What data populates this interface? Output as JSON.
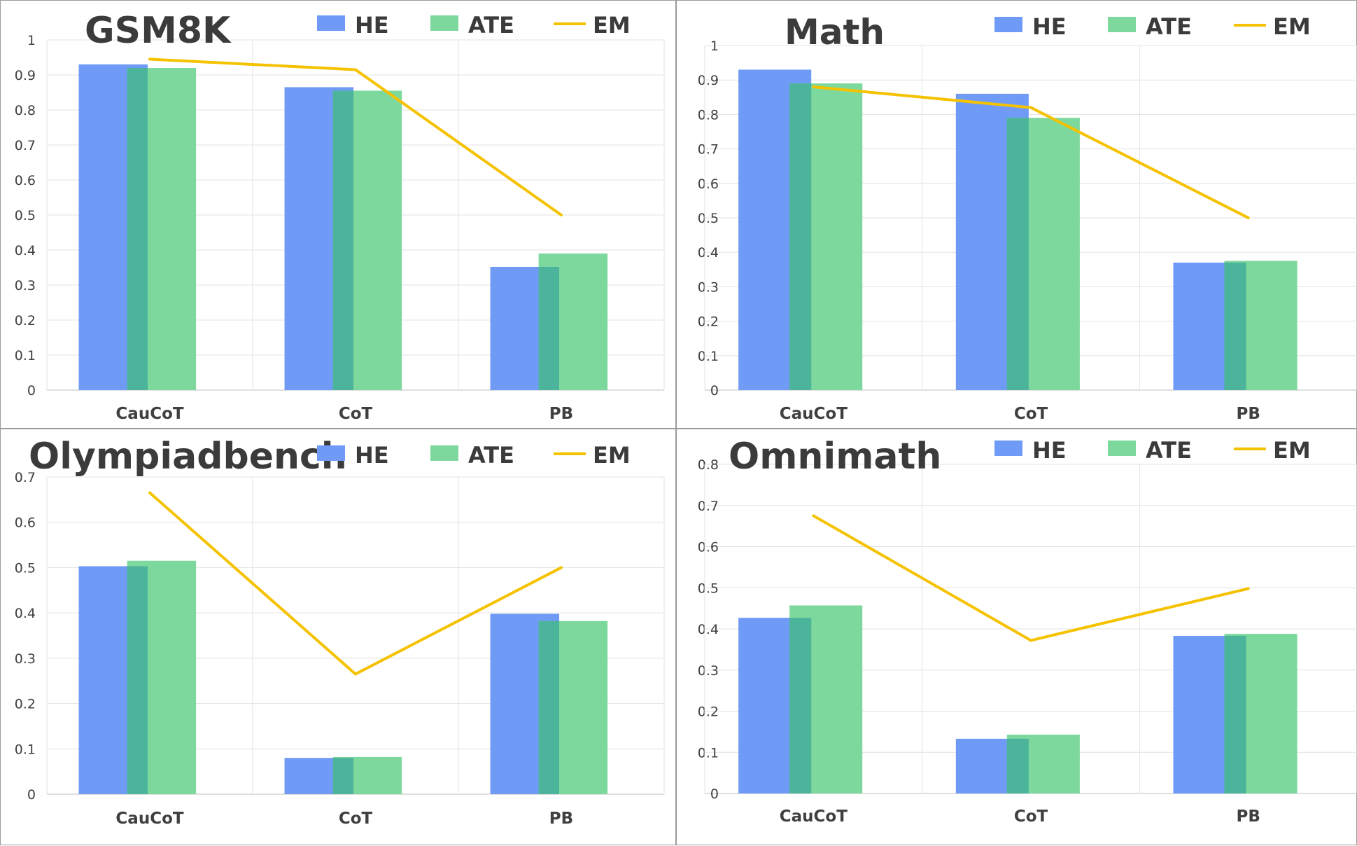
{
  "colors": {
    "HE": "#6f9bf7",
    "ATE": "#7dd89d",
    "overlap": "#4bb49b",
    "EM": "#f5c200"
  },
  "legend": [
    {
      "key": "HE",
      "label": "HE",
      "kind": "box"
    },
    {
      "key": "ATE",
      "label": "ATE",
      "kind": "box"
    },
    {
      "key": "EM",
      "label": "EM",
      "kind": "line"
    }
  ],
  "chart_data": [
    {
      "type": "bar",
      "title": "GSM8K",
      "categories": [
        "CauCoT",
        "CoT",
        "PB"
      ],
      "ylim": [
        0,
        1
      ],
      "yticks": [
        "0",
        "0.1",
        "0.2",
        "0.3",
        "0.4",
        "0.5",
        "0.6",
        "0.7",
        "0.8",
        "0.9",
        "1"
      ],
      "series": [
        {
          "name": "HE",
          "kind": "bar",
          "values": [
            0.93,
            0.865,
            0.352
          ]
        },
        {
          "name": "ATE",
          "kind": "bar",
          "values": [
            0.92,
            0.855,
            0.39
          ]
        },
        {
          "name": "EM",
          "kind": "line",
          "values": [
            0.945,
            0.915,
            0.5
          ]
        }
      ],
      "grid": true,
      "legend_position": "top"
    },
    {
      "type": "bar",
      "title": "Math",
      "categories": [
        "CauCoT",
        "CoT",
        "PB"
      ],
      "ylim": [
        0,
        1
      ],
      "yticks": [
        "0",
        "0.1",
        "0.2",
        "0.3",
        "0.4",
        "0.5",
        "0.6",
        "0.7",
        "0.8",
        "0.9",
        "1"
      ],
      "series": [
        {
          "name": "HE",
          "kind": "bar",
          "values": [
            0.93,
            0.86,
            0.37
          ]
        },
        {
          "name": "ATE",
          "kind": "bar",
          "values": [
            0.89,
            0.79,
            0.375
          ]
        },
        {
          "name": "EM",
          "kind": "line",
          "values": [
            0.88,
            0.82,
            0.5
          ]
        }
      ],
      "grid": true,
      "legend_position": "top"
    },
    {
      "type": "bar",
      "title": "Olympiadbench",
      "categories": [
        "CauCoT",
        "CoT",
        "PB"
      ],
      "ylim": [
        0,
        0.7
      ],
      "yticks": [
        "0",
        "0.1",
        "0.2",
        "0.3",
        "0.4",
        "0.5",
        "0.6",
        "0.7"
      ],
      "series": [
        {
          "name": "HE",
          "kind": "bar",
          "values": [
            0.503,
            0.08,
            0.398
          ]
        },
        {
          "name": "ATE",
          "kind": "bar",
          "values": [
            0.515,
            0.082,
            0.382
          ]
        },
        {
          "name": "EM",
          "kind": "line",
          "values": [
            0.665,
            0.265,
            0.5
          ]
        }
      ],
      "grid": true,
      "legend_position": "top"
    },
    {
      "type": "bar",
      "title": "Omnimath",
      "categories": [
        "CauCoT",
        "CoT",
        "PB"
      ],
      "ylim": [
        0,
        0.8
      ],
      "yticks": [
        "0",
        "0.1",
        "0.2",
        "0.3",
        "0.4",
        "0.5",
        "0.6",
        "0.7",
        "0.8"
      ],
      "series": [
        {
          "name": "HE",
          "kind": "bar",
          "values": [
            0.427,
            0.133,
            0.383
          ]
        },
        {
          "name": "ATE",
          "kind": "bar",
          "values": [
            0.457,
            0.143,
            0.388
          ]
        },
        {
          "name": "EM",
          "kind": "line",
          "values": [
            0.675,
            0.372,
            0.498
          ]
        }
      ],
      "grid": true,
      "legend_position": "top"
    }
  ]
}
